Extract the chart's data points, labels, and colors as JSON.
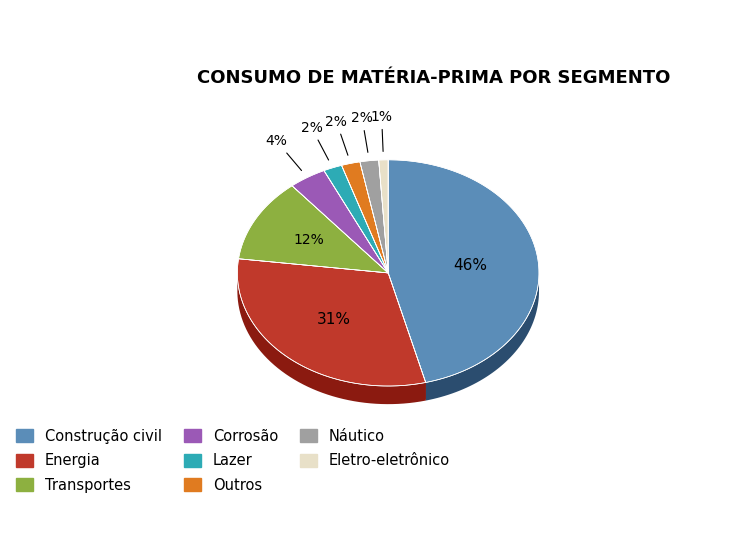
{
  "title": "CONSUMO DE MATÉRIA-PRIMA POR SEGMENTO",
  "segments": [
    {
      "label": "Construção civil",
      "value": 46,
      "color": "#5B8DB8",
      "dark_color": "#2B4D6F",
      "pct_label": "46%"
    },
    {
      "label": "Energia",
      "value": 31,
      "color": "#C0392B",
      "dark_color": "#8B1A10",
      "pct_label": "31%"
    },
    {
      "label": "Transportes",
      "value": 12,
      "color": "#8DB040",
      "dark_color": "#4A6B15",
      "pct_label": "12%"
    },
    {
      "label": "Corrosão",
      "value": 4,
      "color": "#9B59B6",
      "dark_color": "#6C3483",
      "pct_label": "4%"
    },
    {
      "label": "Lazer",
      "value": 2,
      "color": "#2DABB5",
      "dark_color": "#1A6B72",
      "pct_label": "2%"
    },
    {
      "label": "Outros",
      "value": 2,
      "color": "#E07B20",
      "dark_color": "#9A4A08",
      "pct_label": "2%"
    },
    {
      "label": "Náutico",
      "value": 2,
      "color": "#A0A0A0",
      "dark_color": "#606060",
      "pct_label": "2%"
    },
    {
      "label": "Eletro-eletrônico",
      "value": 1,
      "color": "#E8E0C8",
      "dark_color": "#B0A888",
      "pct_label": "1%"
    }
  ],
  "startangle": 90,
  "figsize": [
    7.35,
    5.49
  ],
  "dpi": 100,
  "title_fontsize": 13,
  "label_fontsize": 10,
  "depth": 0.12
}
